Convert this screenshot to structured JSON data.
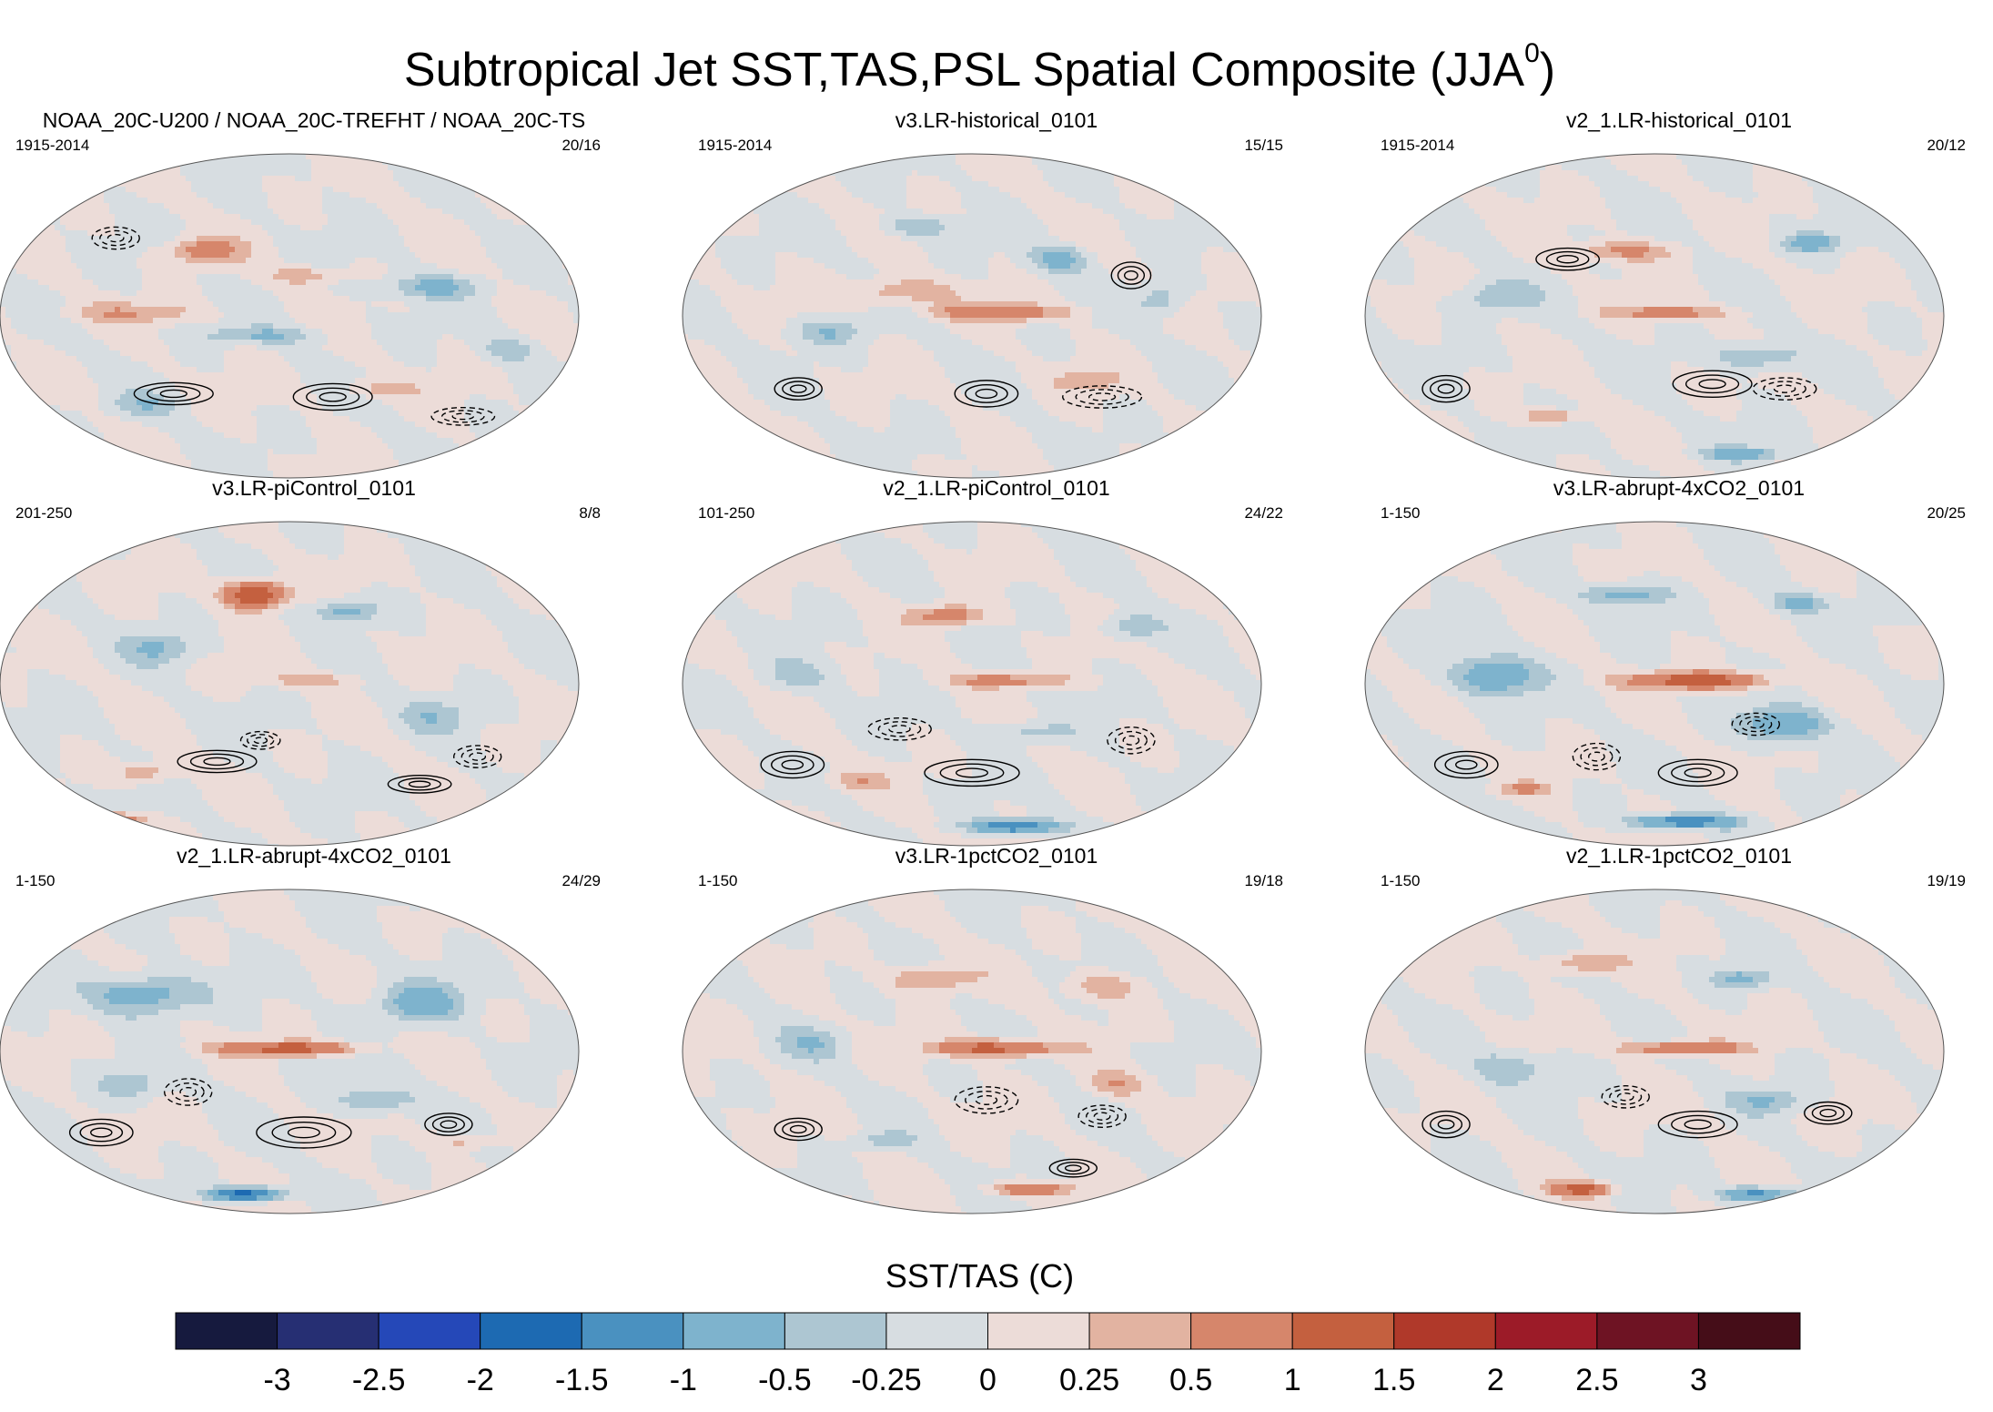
{
  "chart_data": {
    "type": "heatmap",
    "title_main": "Subtropical Jet SST,TAS,PSL Spatial Composite (JJA",
    "title_sup": "0",
    "title_end": ")",
    "colorbar": {
      "label": "SST/TAS (C)",
      "levels": [
        "-3",
        "-2.5",
        "-2",
        "-1.5",
        "-1",
        "-0.5",
        "-0.25",
        "0",
        "0.25",
        "0.5",
        "1",
        "1.5",
        "2",
        "2.5",
        "3"
      ],
      "colors": [
        "#161a3e",
        "#262f73",
        "#2548b8",
        "#1d6ab2",
        "#4a91c0",
        "#7eb3cd",
        "#adc6d2",
        "#d7dde1",
        "#ecdcd8",
        "#e2b3a1",
        "#d6866b",
        "#c4603f",
        "#b0392a",
        "#9c1b28",
        "#6e1323",
        "#450d18"
      ]
    },
    "panels": [
      {
        "title": "NOAA_20C-U200 / NOAA_20C-TREFHT / NOAA_20C-TS",
        "period": "1915-2014",
        "count": "20/16",
        "features": [
          [
            -0.55,
            0.02,
            0.22,
            0.06,
            0.45
          ],
          [
            -0.1,
            -0.12,
            0.2,
            0.05,
            -0.5
          ],
          [
            0.5,
            0.18,
            0.16,
            0.07,
            -0.6
          ],
          [
            -0.3,
            0.4,
            0.12,
            0.08,
            0.7
          ],
          [
            0.05,
            0.25,
            0.1,
            0.05,
            0.5
          ],
          [
            -0.5,
            -0.55,
            0.12,
            0.07,
            -0.4
          ],
          [
            0.3,
            -0.45,
            0.14,
            0.06,
            0.35
          ],
          [
            0.75,
            -0.2,
            0.09,
            0.08,
            -0.4
          ]
        ],
        "psl": [
          [
            -0.4,
            -0.48,
            0.1,
            0.05,
            1
          ],
          [
            0.15,
            -0.5,
            0.1,
            0.06,
            1
          ],
          [
            -0.6,
            0.48,
            0.06,
            0.05,
            -1
          ],
          [
            0.6,
            -0.62,
            0.08,
            0.04,
            -1
          ]
        ]
      },
      {
        "title": "v3.LR-historical_0101",
        "period": "1915-2014",
        "count": "15/15",
        "features": [
          [
            0.1,
            0.02,
            0.22,
            0.05,
            0.9
          ],
          [
            -0.25,
            0.15,
            0.18,
            0.08,
            0.5
          ],
          [
            -0.5,
            -0.1,
            0.12,
            0.08,
            -0.5
          ],
          [
            0.3,
            0.35,
            0.1,
            0.08,
            -0.7
          ],
          [
            -0.2,
            0.55,
            0.12,
            0.06,
            -0.5
          ],
          [
            0.65,
            0.1,
            0.08,
            0.1,
            -0.5
          ],
          [
            0.4,
            -0.4,
            0.12,
            0.07,
            0.4
          ]
        ],
        "psl": [
          [
            -0.6,
            -0.45,
            0.06,
            0.05,
            1
          ],
          [
            0.45,
            -0.5,
            0.1,
            0.05,
            -1
          ],
          [
            0.05,
            -0.48,
            0.08,
            0.06,
            1
          ],
          [
            0.55,
            0.25,
            0.05,
            0.06,
            1
          ]
        ]
      },
      {
        "title": "v2_1.LR-historical_0101",
        "period": "1915-2014",
        "count": "20/12",
        "features": [
          [
            0.05,
            0.02,
            0.2,
            0.04,
            0.7
          ],
          [
            -0.55,
            0.12,
            0.12,
            0.1,
            -0.5
          ],
          [
            0.35,
            -0.25,
            0.14,
            0.08,
            -0.6
          ],
          [
            -0.1,
            0.4,
            0.16,
            0.06,
            0.6
          ],
          [
            0.55,
            0.45,
            0.1,
            0.06,
            -0.7
          ],
          [
            -0.35,
            -0.62,
            0.1,
            0.04,
            0.6
          ],
          [
            0.3,
            -0.85,
            0.12,
            0.04,
            -0.8
          ]
        ],
        "psl": [
          [
            -0.72,
            -0.45,
            0.06,
            0.06,
            1
          ],
          [
            0.2,
            -0.42,
            0.1,
            0.06,
            1
          ],
          [
            0.45,
            -0.45,
            0.08,
            0.05,
            -1
          ],
          [
            -0.3,
            0.35,
            0.08,
            0.05,
            1
          ]
        ]
      },
      {
        "title": "v3.LR-piControl_0101",
        "period": "201-250",
        "count": "8/8",
        "features": [
          [
            0.05,
            0.02,
            0.18,
            0.04,
            0.4
          ],
          [
            -0.12,
            0.55,
            0.1,
            0.08,
            1.6
          ],
          [
            0.2,
            0.45,
            0.1,
            0.07,
            -0.7
          ],
          [
            -0.45,
            0.22,
            0.12,
            0.1,
            -0.5
          ],
          [
            -0.5,
            -0.55,
            0.1,
            0.06,
            0.5
          ],
          [
            -0.6,
            -0.85,
            0.08,
            0.04,
            1.4
          ],
          [
            0.5,
            -0.2,
            0.12,
            0.1,
            -0.4
          ]
        ],
        "psl": [
          [
            -0.25,
            -0.48,
            0.1,
            0.05,
            1
          ],
          [
            0.45,
            -0.62,
            0.08,
            0.04,
            1
          ],
          [
            0.65,
            -0.45,
            0.06,
            0.05,
            -1
          ],
          [
            -0.1,
            -0.35,
            0.05,
            0.04,
            -1
          ]
        ]
      },
      {
        "title": "v2_1.LR-piControl_0101",
        "period": "101-250",
        "count": "24/22",
        "features": [
          [
            0.12,
            0.02,
            0.2,
            0.04,
            0.7
          ],
          [
            -0.08,
            0.42,
            0.12,
            0.06,
            0.8
          ],
          [
            -0.6,
            0.05,
            0.12,
            0.1,
            -0.4
          ],
          [
            0.55,
            0.35,
            0.1,
            0.08,
            -0.5
          ],
          [
            0.2,
            -0.3,
            0.14,
            0.06,
            -0.4
          ],
          [
            0.15,
            -0.88,
            0.14,
            0.04,
            -1.6
          ],
          [
            -0.4,
            -0.6,
            0.1,
            0.05,
            0.4
          ]
        ],
        "psl": [
          [
            -0.62,
            -0.5,
            0.08,
            0.06,
            1
          ],
          [
            0.0,
            -0.55,
            0.12,
            0.06,
            1
          ],
          [
            -0.25,
            -0.28,
            0.08,
            0.05,
            -1
          ],
          [
            0.55,
            -0.35,
            0.06,
            0.06,
            -1
          ]
        ]
      },
      {
        "title": "v3.LR-abrupt-4xCO2_0101",
        "period": "1-150",
        "count": "20/25",
        "features": [
          [
            0.15,
            0.02,
            0.22,
            0.05,
            1.4
          ],
          [
            -0.55,
            0.05,
            0.14,
            0.12,
            -0.9
          ],
          [
            0.45,
            -0.25,
            0.14,
            0.1,
            -0.9
          ],
          [
            -0.1,
            0.55,
            0.14,
            0.06,
            -0.7
          ],
          [
            0.5,
            0.5,
            0.1,
            0.06,
            -0.6
          ],
          [
            0.1,
            -0.85,
            0.16,
            0.04,
            -1.5
          ],
          [
            -0.45,
            -0.65,
            0.1,
            0.04,
            0.5
          ]
        ],
        "psl": [
          [
            -0.65,
            -0.5,
            0.08,
            0.06,
            1
          ],
          [
            0.15,
            -0.55,
            0.1,
            0.06,
            1
          ],
          [
            -0.2,
            -0.45,
            0.06,
            0.06,
            -1
          ],
          [
            0.35,
            -0.25,
            0.06,
            0.05,
            -1
          ]
        ]
      },
      {
        "title": "v2_1.LR-abrupt-4xCO2_0101",
        "period": "1-150",
        "count": "24/29",
        "features": [
          [
            0.0,
            0.02,
            0.22,
            0.04,
            1.3
          ],
          [
            -0.5,
            0.35,
            0.18,
            0.12,
            -0.8
          ],
          [
            0.45,
            0.3,
            0.14,
            0.12,
            -0.8
          ],
          [
            -0.55,
            -0.2,
            0.12,
            0.1,
            -0.4
          ],
          [
            0.3,
            -0.3,
            0.14,
            0.08,
            -0.5
          ],
          [
            -0.15,
            -0.88,
            0.12,
            0.04,
            -1.8
          ],
          [
            0.6,
            -0.55,
            0.1,
            0.05,
            0.4
          ]
        ],
        "psl": [
          [
            -0.65,
            -0.5,
            0.08,
            0.06,
            1
          ],
          [
            0.05,
            -0.5,
            0.12,
            0.07,
            1
          ],
          [
            0.55,
            -0.45,
            0.06,
            0.05,
            1
          ],
          [
            -0.35,
            -0.25,
            0.06,
            0.06,
            -1
          ]
        ]
      },
      {
        "title": "v3.LR-1pctCO2_0101",
        "period": "1-150",
        "count": "19/18",
        "features": [
          [
            0.08,
            0.02,
            0.2,
            0.05,
            1.3
          ],
          [
            -0.15,
            0.45,
            0.14,
            0.08,
            0.6
          ],
          [
            0.45,
            0.4,
            0.12,
            0.08,
            0.5
          ],
          [
            -0.55,
            0.05,
            0.12,
            0.1,
            -0.4
          ],
          [
            0.5,
            -0.2,
            0.1,
            0.08,
            0.5
          ],
          [
            0.2,
            -0.85,
            0.14,
            0.04,
            0.9
          ],
          [
            -0.3,
            -0.55,
            0.1,
            0.05,
            -0.4
          ]
        ],
        "psl": [
          [
            -0.6,
            -0.48,
            0.06,
            0.05,
            1
          ],
          [
            0.05,
            -0.3,
            0.08,
            0.06,
            -1
          ],
          [
            0.45,
            -0.4,
            0.06,
            0.05,
            -1
          ],
          [
            0.35,
            -0.72,
            0.06,
            0.04,
            1
          ]
        ]
      },
      {
        "title": "v2_1.LR-1pctCO2_0101",
        "period": "1-150",
        "count": "19/19",
        "features": [
          [
            0.1,
            0.02,
            0.2,
            0.04,
            1.0
          ],
          [
            -0.25,
            0.55,
            0.12,
            0.06,
            0.6
          ],
          [
            0.3,
            0.45,
            0.1,
            0.06,
            -0.6
          ],
          [
            -0.5,
            -0.1,
            0.12,
            0.1,
            -0.5
          ],
          [
            0.4,
            -0.3,
            0.12,
            0.08,
            -0.5
          ],
          [
            -0.25,
            -0.85,
            0.1,
            0.04,
            1.3
          ],
          [
            0.35,
            -0.88,
            0.12,
            0.04,
            -1.2
          ]
        ],
        "psl": [
          [
            -0.72,
            -0.45,
            0.06,
            0.06,
            1
          ],
          [
            0.15,
            -0.45,
            0.1,
            0.06,
            1
          ],
          [
            -0.1,
            -0.28,
            0.06,
            0.05,
            -1
          ],
          [
            0.6,
            -0.38,
            0.06,
            0.05,
            1
          ]
        ]
      }
    ]
  }
}
